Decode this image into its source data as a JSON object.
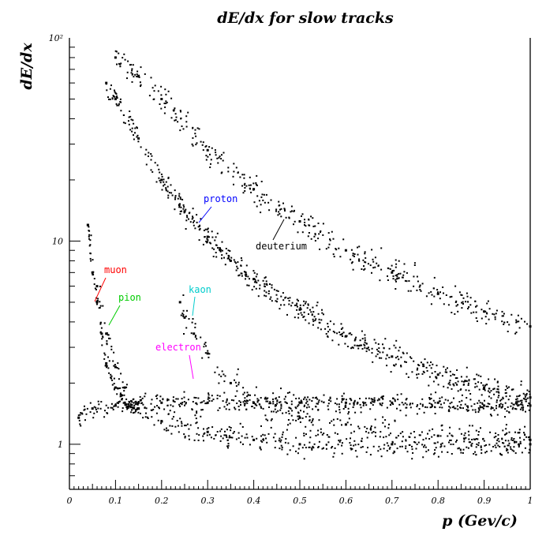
{
  "chart_data": {
    "type": "scatter",
    "title": "dE/dx for slow tracks",
    "xlabel": "p (Gev/c)",
    "ylabel": "dE/dx",
    "xlim": [
      0,
      1
    ],
    "ylim": [
      0.6,
      100
    ],
    "yscale": "log",
    "grid": false,
    "x_ticks": [
      {
        "value": 0,
        "label": "0"
      },
      {
        "value": 0.1,
        "label": "0.1"
      },
      {
        "value": 0.2,
        "label": "0.2"
      },
      {
        "value": 0.3,
        "label": "0.3"
      },
      {
        "value": 0.4,
        "label": "0.4"
      },
      {
        "value": 0.5,
        "label": "0.5"
      },
      {
        "value": 0.6,
        "label": "0.6"
      },
      {
        "value": 0.7,
        "label": "0.7"
      },
      {
        "value": 0.8,
        "label": "0.8"
      },
      {
        "value": 0.9,
        "label": "0.9"
      },
      {
        "value": 1,
        "label": "1"
      }
    ],
    "y_ticks": [
      {
        "value": 1,
        "label": "1"
      },
      {
        "value": 10,
        "label": "10"
      },
      {
        "value": 100,
        "label": "10²"
      }
    ],
    "series": [
      {
        "name": "electron",
        "color": "#ff00ff",
        "x": [
          0.02,
          0.05,
          0.1,
          0.15,
          0.2,
          0.3,
          0.4,
          0.5,
          0.6,
          0.7,
          0.8,
          0.9,
          1.0
        ],
        "y": [
          1.35,
          1.5,
          1.55,
          1.6,
          1.6,
          1.6,
          1.6,
          1.6,
          1.6,
          1.6,
          1.6,
          1.55,
          1.55
        ]
      },
      {
        "name": "muon",
        "color": "#ff0000",
        "x": [
          0.04,
          0.05,
          0.06,
          0.07,
          0.08,
          0.1,
          0.12,
          0.15
        ],
        "y": [
          12,
          7,
          5,
          3.5,
          2.5,
          1.9,
          1.6,
          1.5
        ]
      },
      {
        "name": "pion",
        "color": "#00cc00",
        "x": [
          0.04,
          0.06,
          0.08,
          0.1,
          0.12,
          0.15,
          0.2,
          0.3,
          0.4,
          0.5,
          0.7,
          1.0
        ],
        "y": [
          12,
          6,
          3.5,
          2.4,
          1.9,
          1.5,
          1.3,
          1.15,
          1.05,
          1.0,
          1.0,
          1.0
        ]
      },
      {
        "name": "kaon",
        "color": "#00cccc",
        "x": [
          0.24,
          0.25,
          0.27,
          0.3,
          0.35,
          0.4,
          0.5,
          0.6,
          0.8,
          1.0
        ],
        "y": [
          5,
          4.2,
          3.5,
          2.8,
          2.0,
          1.6,
          1.35,
          1.25,
          1.1,
          1.05
        ]
      },
      {
        "name": "proton",
        "color": "#0000ff",
        "x": [
          0.08,
          0.1,
          0.15,
          0.2,
          0.25,
          0.3,
          0.35,
          0.4,
          0.5,
          0.6,
          0.7,
          0.8,
          0.9,
          1.0
        ],
        "y": [
          60,
          50,
          32,
          20,
          14,
          10.5,
          8,
          6.5,
          4.6,
          3.4,
          2.7,
          2.2,
          1.9,
          1.7
        ]
      },
      {
        "name": "deuterium",
        "color": "#000000",
        "x": [
          0.1,
          0.15,
          0.2,
          0.3,
          0.4,
          0.5,
          0.6,
          0.7,
          0.8,
          0.9,
          1.0
        ],
        "y": [
          80,
          65,
          50,
          28,
          18,
          12.5,
          9,
          7,
          5.5,
          4.5,
          3.8
        ]
      }
    ],
    "annotations": [
      {
        "text": "proton",
        "color": "#0000ff"
      },
      {
        "text": "deuterium",
        "color": "#000000"
      },
      {
        "text": "muon",
        "color": "#ff0000"
      },
      {
        "text": "pion",
        "color": "#00cc00"
      },
      {
        "text": "kaon",
        "color": "#00cccc"
      },
      {
        "text": "electron",
        "color": "#ff00ff"
      }
    ]
  }
}
